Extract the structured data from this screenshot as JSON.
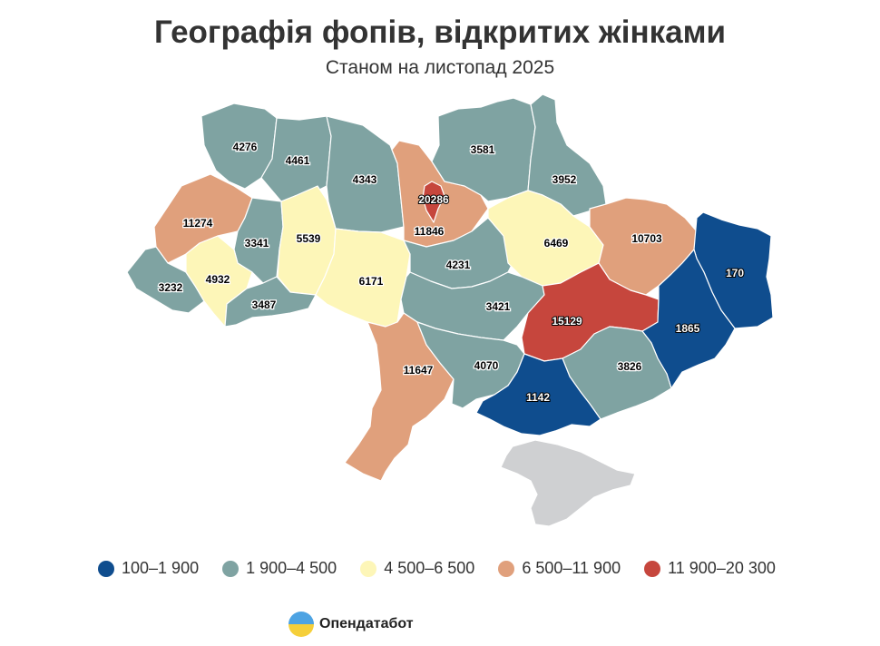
{
  "header": {
    "title": "Географія фопів, відкритих жінками",
    "subtitle": "Станом на листопад 2025"
  },
  "colors": {
    "c1": "#0f4d8e",
    "c2": "#7fa3a2",
    "c3": "#fdf6b8",
    "c4": "#e0a07c",
    "c5": "#c6463d",
    "crimea": "#cfd0d2"
  },
  "regions": [
    {
      "id": "volyn",
      "value": "4276",
      "class": "c2"
    },
    {
      "id": "rivne",
      "value": "4461",
      "class": "c2"
    },
    {
      "id": "zhytomyr",
      "value": "4343",
      "class": "c2"
    },
    {
      "id": "kyiv-oblast",
      "value": "11846",
      "class": "c4"
    },
    {
      "id": "kyiv-city",
      "value": "20286",
      "class": "c5"
    },
    {
      "id": "chernihiv",
      "value": "3581",
      "class": "c2"
    },
    {
      "id": "sumy",
      "value": "3952",
      "class": "c2"
    },
    {
      "id": "lviv",
      "value": "11274",
      "class": "c4"
    },
    {
      "id": "ternopil",
      "value": "3341",
      "class": "c2"
    },
    {
      "id": "khmelnytskyi",
      "value": "5539",
      "class": "c3"
    },
    {
      "id": "vinnytsia",
      "value": "6171",
      "class": "c3"
    },
    {
      "id": "cherkasy",
      "value": "4231",
      "class": "c2"
    },
    {
      "id": "poltava",
      "value": "6469",
      "class": "c3"
    },
    {
      "id": "kharkiv",
      "value": "10703",
      "class": "c4"
    },
    {
      "id": "luhansk",
      "value": "170",
      "class": "c1"
    },
    {
      "id": "zakarpattia",
      "value": "3232",
      "class": "c2"
    },
    {
      "id": "ivano-frankivsk",
      "value": "4932",
      "class": "c3"
    },
    {
      "id": "chernivtsi",
      "value": "3487",
      "class": "c2"
    },
    {
      "id": "kirovohrad",
      "value": "3421",
      "class": "c2"
    },
    {
      "id": "dnipro",
      "value": "15129",
      "class": "c5"
    },
    {
      "id": "donetsk",
      "value": "1865",
      "class": "c1"
    },
    {
      "id": "odesa",
      "value": "11647",
      "class": "c4"
    },
    {
      "id": "mykolaiv",
      "value": "4070",
      "class": "c2"
    },
    {
      "id": "zaporizhzhia",
      "value": "3826",
      "class": "c2"
    },
    {
      "id": "kherson",
      "value": "1142",
      "class": "c1"
    }
  ],
  "legend": [
    {
      "label": "100–1 900",
      "color": "#0f4d8e"
    },
    {
      "label": "1 900–4 500",
      "color": "#7fa3a2"
    },
    {
      "label": "4 500–6 500",
      "color": "#fdf6b8"
    },
    {
      "label": "6 500–11 900",
      "color": "#e0a07c"
    },
    {
      "label": "11 900–20 300",
      "color": "#c6463d"
    }
  ],
  "brand": {
    "name": "Опендатабот",
    "logo_icon": "opendatabot-logo-icon"
  }
}
